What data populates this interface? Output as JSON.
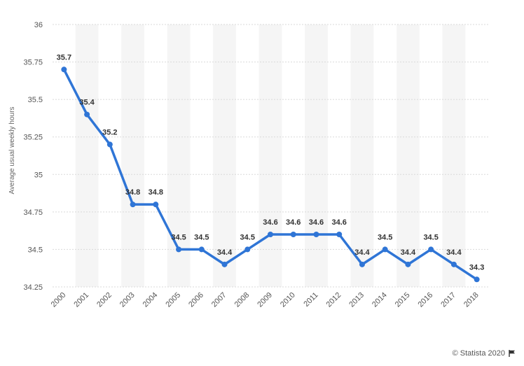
{
  "chart_data": {
    "type": "line",
    "title": "",
    "xlabel": "",
    "ylabel": "Average usual weekly hours",
    "categories": [
      "2000",
      "2001",
      "2002",
      "2003",
      "2004",
      "2005",
      "2006",
      "2007",
      "2008",
      "2009",
      "2010",
      "2011",
      "2012",
      "2013",
      "2014",
      "2015",
      "2016",
      "2017",
      "2018"
    ],
    "series": [
      {
        "values": [
          35.7,
          35.4,
          35.2,
          34.8,
          34.8,
          34.5,
          34.5,
          34.4,
          34.5,
          34.6,
          34.6,
          34.6,
          34.6,
          34.4,
          34.5,
          34.4,
          34.5,
          34.4,
          34.3
        ],
        "labels": [
          "35.7",
          "35.4",
          "35.2",
          "34.8",
          "34.8",
          "34.5",
          "34.5",
          "34.4",
          "34.5",
          "34.6",
          "34.6",
          "34.6",
          "34.6",
          "34.4",
          "34.5",
          "34.4",
          "34.5",
          "34.4",
          "34.3"
        ],
        "color": "#2f75d6"
      }
    ],
    "ylim": [
      34.25,
      36
    ],
    "yticks": [
      "34.25",
      "34.5",
      "34.75",
      "35",
      "35.25",
      "35.5",
      "35.75",
      "36"
    ],
    "grid": true,
    "band_color": "#f5f5f5",
    "grid_color": "#d9d9d9"
  },
  "footer": {
    "credit": "© Statista 2020"
  },
  "icons": {
    "flag": "flag-icon"
  }
}
